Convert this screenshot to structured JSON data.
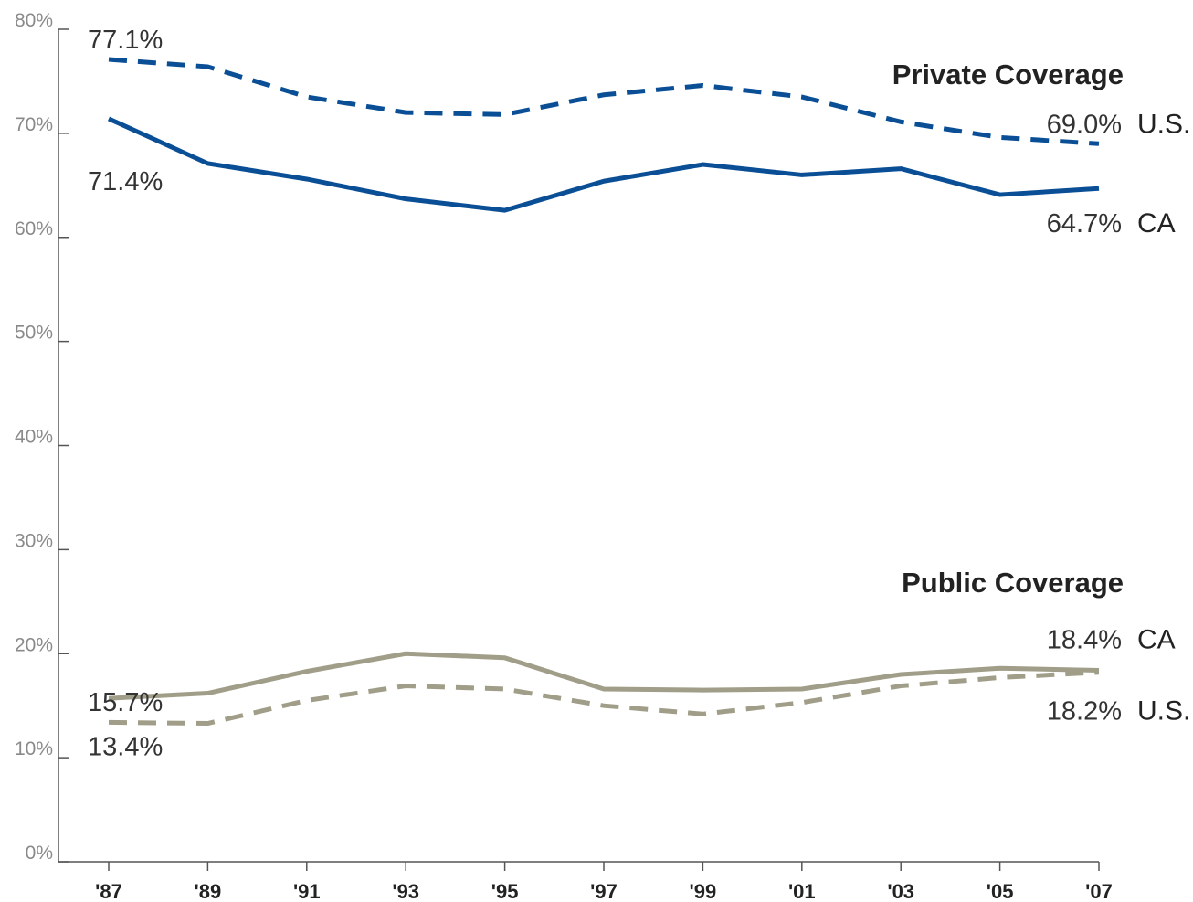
{
  "chart_data": {
    "type": "line",
    "annotations": [
      "Private Coverage",
      "Public Coverage"
    ],
    "categories": [
      "'87",
      "'89",
      "'91",
      "'93",
      "'95",
      "'97",
      "'99",
      "'01",
      "'03",
      "'05",
      "'07"
    ],
    "ylim": [
      0,
      80
    ],
    "yticks": [
      {
        "value": 0,
        "label": "0%"
      },
      {
        "value": 10,
        "label": "10%"
      },
      {
        "value": 20,
        "label": "20%"
      },
      {
        "value": 30,
        "label": "30%"
      },
      {
        "value": 40,
        "label": "40%"
      },
      {
        "value": 50,
        "label": "50%"
      },
      {
        "value": 60,
        "label": "60%"
      },
      {
        "value": 70,
        "label": "70%"
      },
      {
        "value": 80,
        "label": "80%"
      }
    ],
    "series": [
      {
        "name": "U.S.",
        "color": "#0a4f96",
        "dashed": true,
        "values": [
          77.1,
          76.4,
          73.5,
          72.0,
          71.8,
          73.7,
          74.6,
          73.5,
          71.1,
          69.6,
          69.0
        ],
        "value_labels": [
          "77.1%",
          null,
          null,
          null,
          null,
          null,
          null,
          null,
          null,
          null,
          "69.0%"
        ]
      },
      {
        "name": "CA",
        "color": "#0a4f96",
        "dashed": false,
        "values": [
          71.4,
          67.1,
          65.6,
          63.7,
          62.6,
          65.4,
          67.0,
          66.0,
          66.6,
          64.1,
          64.7
        ],
        "value_labels": [
          "71.4%",
          null,
          null,
          null,
          null,
          null,
          null,
          null,
          null,
          null,
          "64.7%"
        ]
      },
      {
        "name": "CA",
        "color": "#a09e88",
        "dashed": false,
        "values": [
          15.7,
          16.2,
          18.3,
          20.0,
          19.6,
          16.6,
          16.5,
          16.6,
          18.0,
          18.6,
          18.4
        ],
        "value_labels": [
          "15.7%",
          null,
          null,
          null,
          null,
          null,
          null,
          null,
          null,
          null,
          "18.4%"
        ]
      },
      {
        "name": "U.S.",
        "color": "#a09e88",
        "dashed": true,
        "values": [
          13.4,
          13.3,
          15.5,
          16.9,
          16.6,
          15.0,
          14.2,
          15.3,
          16.9,
          17.7,
          18.2
        ],
        "value_labels": [
          "13.4%",
          null,
          null,
          null,
          null,
          null,
          null,
          null,
          null,
          null,
          "18.2%"
        ]
      }
    ]
  }
}
